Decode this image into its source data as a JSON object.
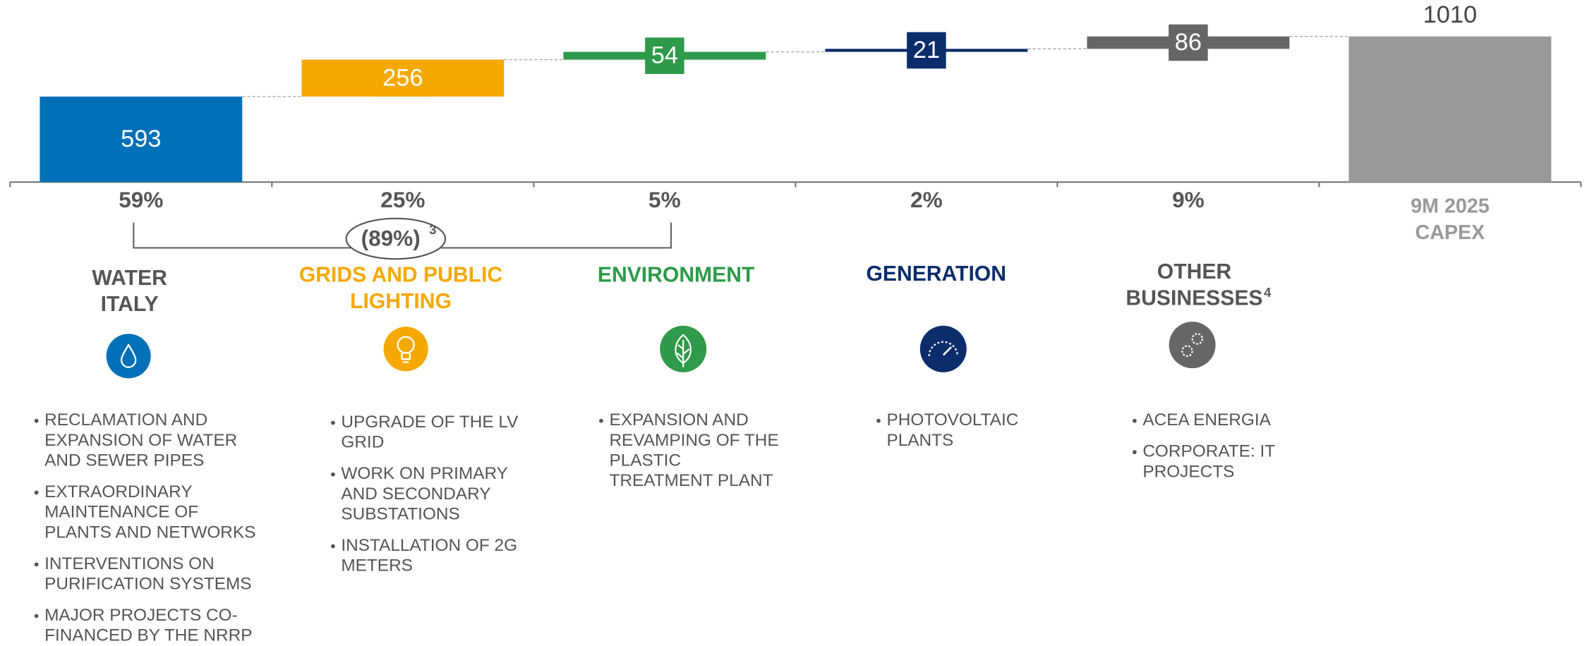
{
  "chart_data": {
    "type": "waterfall",
    "values": [
      593,
      256,
      54,
      21,
      86,
      1010
    ],
    "total": [
      false,
      false,
      false,
      false,
      false,
      true
    ],
    "colors": [
      "#0070b8",
      "#f5a800",
      "#2e9a4a",
      "#0b2d6b",
      "#666666",
      "#999999"
    ],
    "ylim": [
      0,
      1010
    ],
    "categories": [
      [
        "WATER",
        "ITALY"
      ],
      [
        "GRIDS AND PUBLIC",
        "LIGHTING"
      ],
      [
        "ENVIRONMENT"
      ],
      [
        "GENERATION"
      ],
      [
        "OTHER",
        "BUSINESSES"
      ],
      [
        "9M 2025",
        "CAPEX"
      ]
    ],
    "category_colors": [
      "#555555",
      "#f5a800",
      "#2e9a4a",
      "#0b2d6b",
      "#555555",
      "#999999"
    ],
    "category_notes": [
      null,
      null,
      null,
      null,
      "4",
      null
    ],
    "shares": [
      "59%",
      "25%",
      "5%",
      "2%",
      "9%"
    ],
    "bracket": {
      "label": "(89%)",
      "note": "3"
    },
    "details": [
      [
        [
          "RECLAMATION AND",
          "EXPANSION OF WATER",
          "AND SEWER PIPES"
        ],
        [
          "EXTRAORDINARY",
          "MAINTENANCE OF",
          "PLANTS AND NETWORKS"
        ],
        [
          "INTERVENTIONS ON",
          "PURIFICATION SYSTEMS"
        ],
        [
          "MAJOR PROJECTS CO-",
          "FINANCED BY THE NRRP"
        ]
      ],
      [
        [
          "UPGRADE OF THE LV",
          "GRID"
        ],
        [
          "WORK ON PRIMARY",
          "AND SECONDARY",
          "SUBSTATIONS"
        ],
        [
          "INSTALLATION OF 2G",
          "METERS"
        ]
      ],
      [
        [
          "EXPANSION AND",
          "REVAMPING OF THE",
          "PLASTIC",
          "TREATMENT PLANT"
        ]
      ],
      [
        [
          "PHOTOVOLTAIC",
          "PLANTS"
        ]
      ],
      [
        [
          "ACEA ENERGIA"
        ],
        [
          "CORPORATE: IT",
          "PROJECTS"
        ]
      ]
    ]
  }
}
